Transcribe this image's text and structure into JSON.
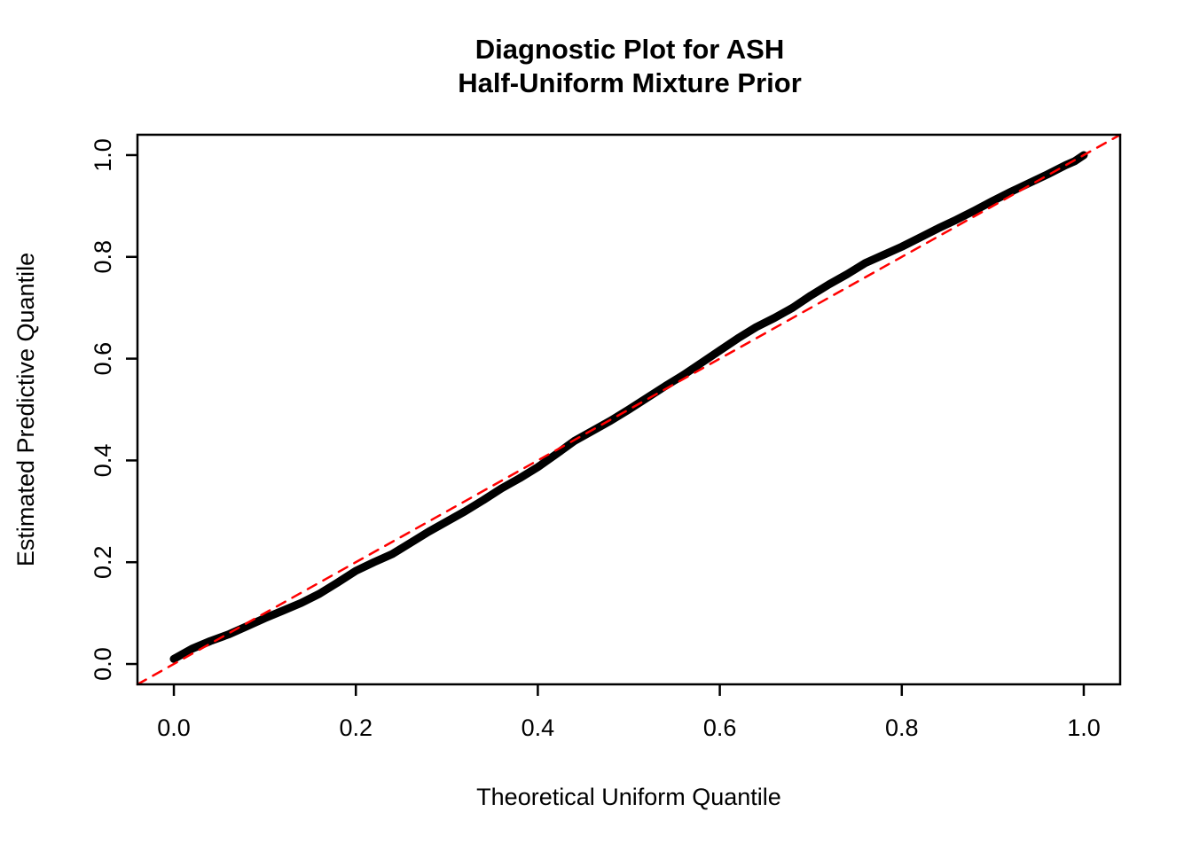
{
  "header": {
    "title_line1": "Diagnostic Plot for ASH",
    "title_line2": "Half-Uniform Mixture Prior"
  },
  "axes": {
    "x_label": "Theoretical Uniform Quantile",
    "y_label": "Estimated Predictive Quantile"
  },
  "colors": {
    "points": "#000000",
    "reference_line": "#FF0000",
    "axis": "#000000",
    "background": "#FFFFFF"
  },
  "chart_data": {
    "type": "scatter",
    "title": "Diagnostic Plot for ASH\nHalf-Uniform Mixture Prior",
    "xlabel": "Theoretical Uniform Quantile",
    "ylabel": "Estimated Predictive Quantile",
    "xlim": [
      -0.04,
      1.04
    ],
    "ylim": [
      -0.04,
      1.04
    ],
    "x_ticks": [
      0.0,
      0.2,
      0.4,
      0.6,
      0.8,
      1.0
    ],
    "y_ticks": [
      0.0,
      0.2,
      0.4,
      0.6,
      0.8,
      1.0
    ],
    "grid": false,
    "legend": "none",
    "series": [
      {
        "name": "estimated-predictive-quantiles",
        "kind": "scatter-band",
        "color": "#000000",
        "x": [
          0.0,
          0.01,
          0.02,
          0.04,
          0.06,
          0.08,
          0.1,
          0.12,
          0.14,
          0.16,
          0.18,
          0.2,
          0.22,
          0.24,
          0.26,
          0.28,
          0.3,
          0.32,
          0.34,
          0.36,
          0.38,
          0.4,
          0.42,
          0.44,
          0.46,
          0.48,
          0.5,
          0.52,
          0.54,
          0.56,
          0.58,
          0.6,
          0.62,
          0.64,
          0.66,
          0.68,
          0.7,
          0.72,
          0.74,
          0.76,
          0.78,
          0.8,
          0.82,
          0.84,
          0.86,
          0.88,
          0.9,
          0.92,
          0.94,
          0.96,
          0.98,
          0.99,
          1.0
        ],
        "y": [
          0.01,
          0.02,
          0.03,
          0.045,
          0.058,
          0.074,
          0.09,
          0.105,
          0.12,
          0.138,
          0.16,
          0.183,
          0.2,
          0.216,
          0.238,
          0.26,
          0.28,
          0.3,
          0.322,
          0.345,
          0.365,
          0.387,
          0.412,
          0.438,
          0.458,
          0.478,
          0.5,
          0.523,
          0.546,
          0.568,
          0.592,
          0.616,
          0.64,
          0.662,
          0.68,
          0.7,
          0.724,
          0.746,
          0.766,
          0.788,
          0.804,
          0.82,
          0.838,
          0.856,
          0.873,
          0.891,
          0.91,
          0.928,
          0.945,
          0.962,
          0.98,
          0.988,
          1.0
        ]
      },
      {
        "name": "identity-reference-line",
        "kind": "line",
        "style": "dashed",
        "color": "#FF0000",
        "x": [
          -0.04,
          1.04
        ],
        "y": [
          -0.04,
          1.04
        ]
      }
    ]
  }
}
